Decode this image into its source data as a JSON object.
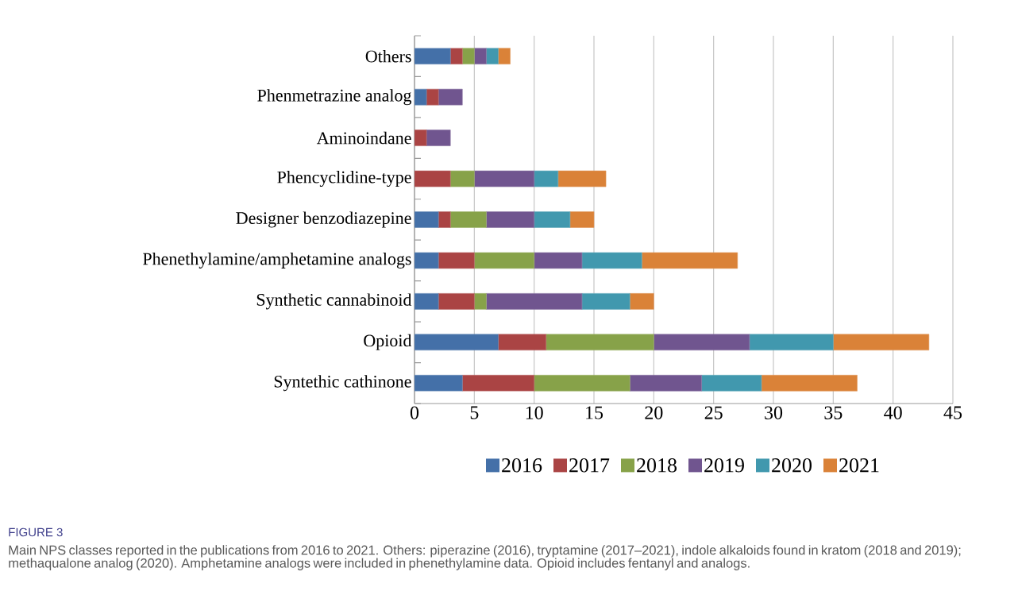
{
  "chart_data": {
    "type": "bar",
    "orientation": "horizontal",
    "stacked": true,
    "categories": [
      "Others",
      "Phenmetrazine analog",
      "Aminoindane",
      "Phencyclidine-type",
      "Designer benzodiazepine",
      "Phenethylamine/amphetamine analogs",
      "Synthetic cannabinoid",
      "Opioid",
      "Syntethic cathinone"
    ],
    "series": [
      {
        "name": "2016",
        "color": "#4470a8",
        "values": [
          3,
          1,
          0,
          0,
          2,
          2,
          2,
          7,
          4
        ]
      },
      {
        "name": "2017",
        "color": "#aa4444",
        "values": [
          1,
          1,
          1,
          3,
          1,
          3,
          3,
          4,
          6
        ]
      },
      {
        "name": "2018",
        "color": "#87a249",
        "values": [
          1,
          0,
          0,
          2,
          3,
          5,
          1,
          9,
          8
        ]
      },
      {
        "name": "2019",
        "color": "#70558f",
        "values": [
          1,
          2,
          2,
          5,
          4,
          4,
          8,
          8,
          6
        ]
      },
      {
        "name": "2020",
        "color": "#4198ae",
        "values": [
          1,
          0,
          0,
          2,
          3,
          5,
          4,
          7,
          5
        ]
      },
      {
        "name": "2021",
        "color": "#da8238",
        "values": [
          1,
          0,
          0,
          4,
          2,
          8,
          2,
          8,
          8
        ]
      }
    ],
    "xlim": [
      0,
      45
    ],
    "xticks": [
      0,
      5,
      10,
      15,
      20,
      25,
      30,
      35,
      40,
      45
    ],
    "grid": "x",
    "legend": "bottom",
    "annotations": [
      "FIGURE 3",
      "Main NPS classes reported in the publications from 2016 to 2021. Others: piperazine (2016), tryptamine (2017–2021), indole alkaloids found in kratom (2018 and 2019); methaqualone analog (2020). Amphetamine analogs were included in phenethylamine data. Opioid includes fentanyl and analogs."
    ]
  }
}
